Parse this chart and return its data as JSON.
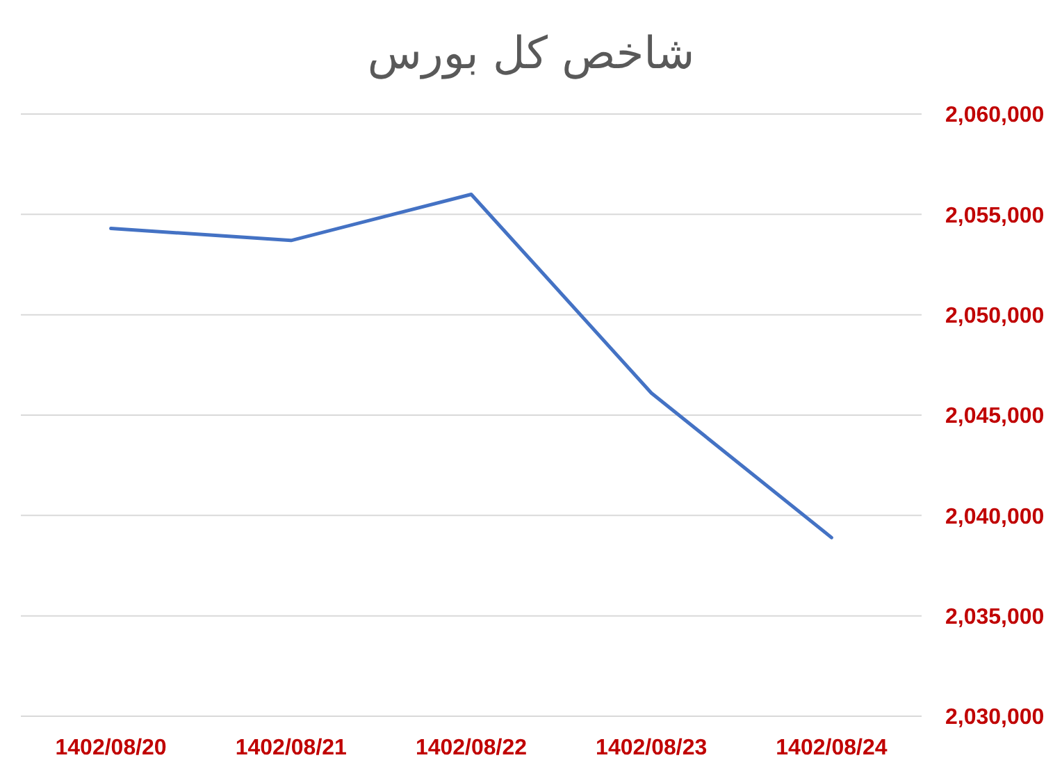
{
  "chart_data": {
    "type": "line",
    "title": "شاخص کل بورس",
    "categories": [
      "1402/08/20",
      "1402/08/21",
      "1402/08/22",
      "1402/08/23",
      "1402/08/24"
    ],
    "values": [
      2054300,
      2053700,
      2056000,
      2046100,
      2038900
    ],
    "color": "#4472c4",
    "ylim": [
      2030000,
      2060000
    ],
    "yticks": [
      {
        "value": 2030000,
        "label": "2,030,000"
      },
      {
        "value": 2035000,
        "label": "2,035,000"
      },
      {
        "value": 2040000,
        "label": "2,040,000"
      },
      {
        "value": 2045000,
        "label": "2,045,000"
      },
      {
        "value": 2050000,
        "label": "2,050,000"
      },
      {
        "value": 2055000,
        "label": "2,055,000"
      },
      {
        "value": 2060000,
        "label": "2,060,000"
      }
    ],
    "grid": "y",
    "marker": "none",
    "line_style": "solid"
  }
}
